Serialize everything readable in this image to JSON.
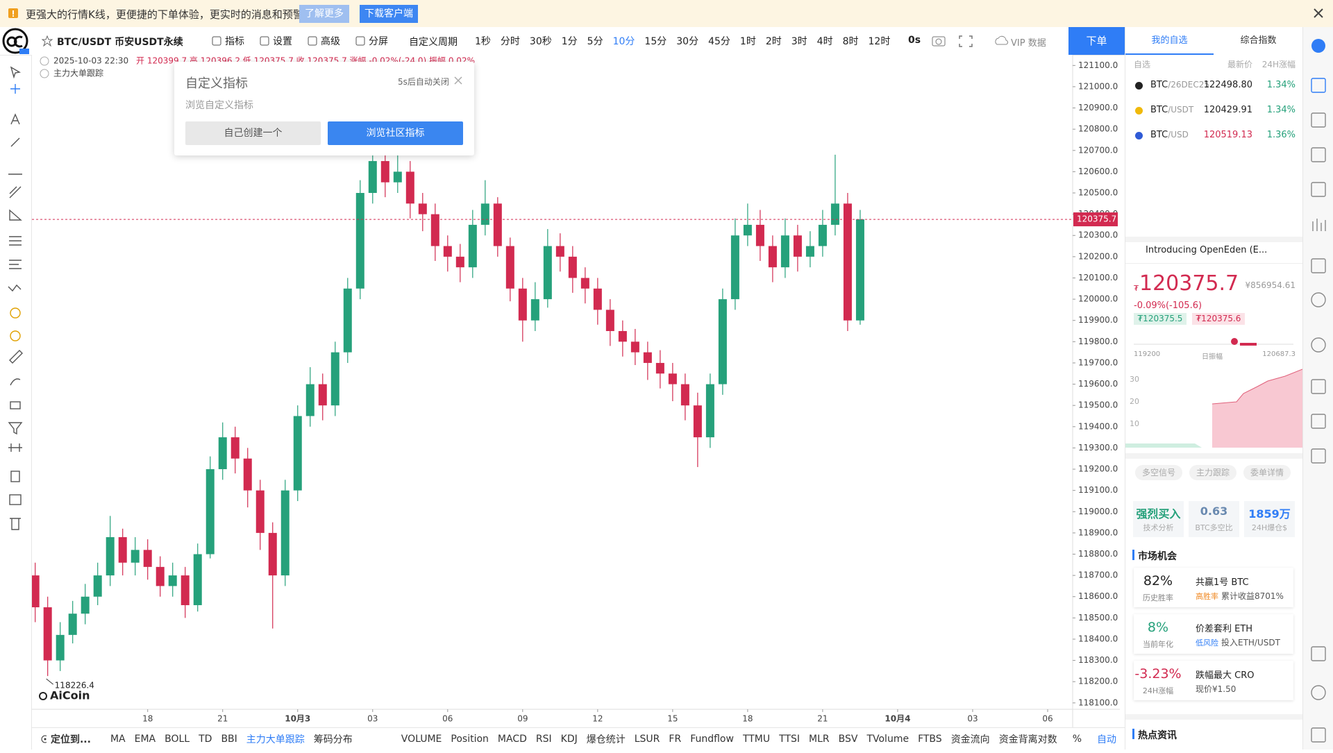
{
  "banner": {
    "text": "更强大的行情K线，更便捷的下单体验，更实时的消息和预警",
    "buttons": [
      "了解更多",
      "下载客户端"
    ]
  },
  "toolbar": {
    "symbol": "BTC/USDT 币安USDT永续",
    "tools": [
      "指标",
      "设置",
      "高级",
      "分屏"
    ],
    "custom_period": "自定义周期",
    "periods": [
      "1秒",
      "分时",
      "30秒",
      "1分",
      "5分",
      "10分",
      "15分",
      "30分",
      "45分",
      "1时",
      "2时",
      "3时",
      "4时",
      "8时",
      "12时"
    ],
    "countdown": "0s",
    "vip": "VIP 数据",
    "order": "下单"
  },
  "chart_data": {
    "type": "candlestick",
    "info": {
      "datetime": "2025-10-03 22:30",
      "ohlc": "开 120399.7 高 120396.2 低 120375.7 收 120375.7 涨幅 -0.02%(-24.0) 振幅 0.02%"
    },
    "indicator": "主力大单跟踪",
    "watermark": "AiCoin",
    "x": [
      13.5,
      14,
      14.5,
      15,
      15.5,
      16,
      16.5,
      17,
      17.5,
      18,
      18.5,
      19,
      19.5,
      20,
      20.5,
      21,
      21.5,
      22,
      22.5,
      23,
      23.5,
      24,
      24.5,
      25,
      25.5,
      26,
      26.5,
      27,
      27.5,
      28,
      28.5,
      29,
      29.5,
      30,
      30.5,
      31,
      31.5,
      32,
      32.5,
      33,
      33.5,
      34,
      34.5,
      35,
      35.5,
      36,
      36.5,
      37,
      37.5,
      38,
      38.5,
      39,
      39.5,
      40,
      40.5,
      41,
      41.5,
      42,
      42.5,
      43,
      43.5,
      44,
      44.5,
      45,
      45.5,
      46,
      46.5
    ],
    "open": [
      118700,
      118550,
      118300,
      118420,
      118520,
      118600,
      118700,
      118880,
      118760,
      118820,
      118740,
      118650,
      118700,
      118560,
      118800,
      119200,
      119350,
      119250,
      119100,
      118900,
      118700,
      119100,
      119450,
      119600,
      119500,
      119750,
      120050,
      120500,
      120650,
      120550,
      120600,
      120450,
      120400,
      120250,
      120200,
      120150,
      120350,
      120450,
      120250,
      120050,
      119900,
      120000,
      120250,
      120200,
      120100,
      120050,
      119950,
      119850,
      119800,
      119750,
      119700,
      119650,
      119600,
      119500,
      119350,
      119600,
      120000,
      120300,
      120350,
      120250,
      120150,
      120300,
      120200,
      120250,
      120350,
      120450,
      119900
    ],
    "high": [
      118760,
      118600,
      118480,
      118580,
      118660,
      118760,
      118980,
      118920,
      118880,
      118870,
      118790,
      118760,
      118740,
      118850,
      119260,
      119420,
      119400,
      119300,
      119150,
      118950,
      119150,
      119500,
      119680,
      119650,
      119800,
      120100,
      120560,
      120720,
      120700,
      120680,
      120650,
      120500,
      120450,
      120300,
      120260,
      120420,
      120560,
      120480,
      120290,
      120100,
      120080,
      120330,
      120310,
      120250,
      120150,
      120100,
      120000,
      119900,
      119860,
      119800,
      119760,
      119700,
      119650,
      119560,
      119650,
      120050,
      120380,
      120450,
      120420,
      120300,
      120380,
      120350,
      120320,
      120420,
      120680,
      120500,
      120420
    ],
    "low": [
      118480,
      118226.4,
      118250,
      118380,
      118470,
      118560,
      118650,
      118700,
      118700,
      118680,
      118600,
      118600,
      118500,
      118530,
      118780,
      119150,
      119180,
      119020,
      118820,
      118450,
      118650,
      119050,
      119400,
      119430,
      119450,
      119700,
      120000,
      120450,
      120480,
      120500,
      120380,
      120320,
      120180,
      120130,
      120080,
      120100,
      120300,
      120200,
      119990,
      119800,
      119850,
      119960,
      120130,
      120030,
      119980,
      119880,
      119780,
      119730,
      119690,
      119620,
      119580,
      119520,
      119430,
      119210,
      119300,
      119550,
      119950,
      120250,
      120180,
      120080,
      120100,
      120130,
      120150,
      120200,
      120300,
      119850,
      119880
    ],
    "close": [
      118550,
      118300,
      118420,
      118520,
      118600,
      118700,
      118880,
      118760,
      118820,
      118740,
      118650,
      118700,
      118560,
      118800,
      119200,
      119350,
      119250,
      119100,
      118900,
      118700,
      119100,
      119450,
      119600,
      119500,
      119750,
      120050,
      120500,
      120650,
      120550,
      120600,
      120450,
      120400,
      120250,
      120200,
      120150,
      120350,
      120450,
      120250,
      120050,
      119900,
      120000,
      120250,
      120200,
      120100,
      120050,
      119950,
      119850,
      119800,
      119750,
      119700,
      119650,
      119600,
      119500,
      119350,
      119600,
      120000,
      120300,
      120350,
      120250,
      120150,
      120300,
      120200,
      120250,
      120350,
      120450,
      119900,
      120375.7
    ],
    "up_color": "#26a17b",
    "down_color": "#d22a50",
    "grid": false,
    "xlim": [
      13.37,
      55
    ],
    "xticks": [
      18,
      21,
      {
        "value": 24,
        "label": "10月3"
      },
      {
        "value": 27,
        "label": "03"
      },
      {
        "value": 30,
        "label": "06"
      },
      {
        "value": 33,
        "label": "09"
      },
      {
        "value": 36,
        "label": "12"
      },
      {
        "value": 39,
        "label": "15"
      },
      {
        "value": 42,
        "label": "18"
      },
      {
        "value": 45,
        "label": "21"
      },
      {
        "value": 48,
        "label": "10月4"
      },
      {
        "value": 51,
        "label": "03"
      },
      {
        "value": 54,
        "label": "06"
      }
    ],
    "ylim": [
      118070,
      121150
    ],
    "yticks": [
      {
        "value": 118100,
        "label": "118100.0"
      },
      {
        "value": 118200,
        "label": "118200.0"
      },
      {
        "value": 118300,
        "label": "118300.0"
      },
      {
        "value": 118400,
        "label": "118400.0"
      },
      {
        "value": 118500,
        "label": "118500.0"
      },
      {
        "value": 118600,
        "label": "118600.0"
      },
      {
        "value": 118700,
        "label": "118700.0"
      },
      {
        "value": 118800,
        "label": "118800.0"
      },
      {
        "value": 118900,
        "label": "118900.0"
      },
      {
        "value": 119000,
        "label": "119000.0"
      },
      {
        "value": 119100,
        "label": "119100.0"
      },
      {
        "value": 119200,
        "label": "119200.0"
      },
      {
        "value": 119300,
        "label": "119300.0"
      },
      {
        "value": 119400,
        "label": "119400.0"
      },
      {
        "value": 119500,
        "label": "119500.0"
      },
      {
        "value": 119600,
        "label": "119600.0"
      },
      {
        "value": 119700,
        "label": "119700.0"
      },
      {
        "value": 119800,
        "label": "119800.0"
      },
      {
        "value": 119900,
        "label": "119900.0"
      },
      {
        "value": 120000,
        "label": "120000.0"
      },
      {
        "value": 120100,
        "label": "120100.0"
      },
      {
        "value": 120200,
        "label": "120200.0"
      },
      {
        "value": 120300,
        "label": "120300.0"
      },
      {
        "value": 120400,
        "label": "120400.0"
      },
      {
        "value": 120500,
        "label": "120500.0"
      },
      {
        "value": 120600,
        "label": "120600.0"
      },
      {
        "value": 120700,
        "label": "120700.0"
      },
      {
        "value": 120800,
        "label": "120800.0"
      },
      {
        "value": 120900,
        "label": "120900.0"
      },
      {
        "value": 121000,
        "label": "121000.0"
      },
      {
        "value": 121100,
        "label": "121100.0"
      }
    ],
    "last_price": 120375.7,
    "low_label": 118226.4
  },
  "popup": {
    "title": "自定义指标",
    "countdown": "5s后自动关闭",
    "subtitle": "浏览自定义指标",
    "buttons": [
      "自己创建一个",
      "浏览社区指标"
    ]
  },
  "bottom_bar": {
    "locate": "定位到...",
    "indicators": [
      "MA",
      "EMA",
      "BOLL",
      "TD",
      "BBI",
      "主力大单跟踪",
      "筹码分布"
    ],
    "sub_indicators": [
      "VOLUME",
      "Position",
      "MACD",
      "RSI",
      "KDJ",
      "爆仓统计",
      "LSUR",
      "FR",
      "Fundflow",
      "TTMU",
      "TTSI",
      "MLR",
      "BSV",
      "TVolume",
      "FTBS",
      "资金流向",
      "资金背离"
    ],
    "right": [
      "对数",
      "%",
      "自动"
    ]
  },
  "right_panel": {
    "tabs": [
      "我的自选",
      "综合指数"
    ],
    "list_header": [
      "自选",
      "最新价",
      "24H涨幅"
    ],
    "watchlist": [
      {
        "symbol": "BTC",
        "pair": "/26DEC25",
        "price": "122498.80",
        "change": "1.34%"
      },
      {
        "symbol": "BTC",
        "pair": "/USDT",
        "price": "120429.91",
        "change": "1.34%"
      },
      {
        "symbol": "BTC",
        "pair": "/USD",
        "price": "120519.13",
        "change": "1.36%"
      }
    ],
    "news": "Introducing OpenEden (E...",
    "quote": {
      "currency": "₮",
      "price": "120375.7",
      "cny": "¥856954.61",
      "change": "-0.09%(-105.6)",
      "bid": "₮120375.5",
      "ask": "₮120375.6",
      "range_low": "119200",
      "range_label": "日振幅",
      "range_high": "120687.3",
      "depth_ticks": [
        "30",
        "20",
        "10"
      ]
    },
    "tags": [
      "多空信号",
      "主力跟踪",
      "委单详情"
    ],
    "stats": [
      {
        "value": "强烈买入",
        "label": "技术分析"
      },
      {
        "value": "0.63",
        "label": "BTC多空比"
      },
      {
        "value": "1859万",
        "label": "24H爆仓$"
      }
    ],
    "market_title": "市场机会",
    "cards": [
      {
        "value": "82%",
        "sub": "历史胜率",
        "title": "共赢1号 BTC",
        "tag": "高胜率",
        "desc": "累计收益8701%"
      },
      {
        "value": "8%",
        "sub": "当前年化",
        "title": "价差套利 ETH",
        "tag": "低风险",
        "desc": "投入ETH/USDT"
      },
      {
        "value": "-3.23%",
        "sub": "24H涨幅",
        "title": "跌幅最大 CRO",
        "desc": "现价¥1.50"
      }
    ],
    "hot_title": "热点资讯"
  }
}
